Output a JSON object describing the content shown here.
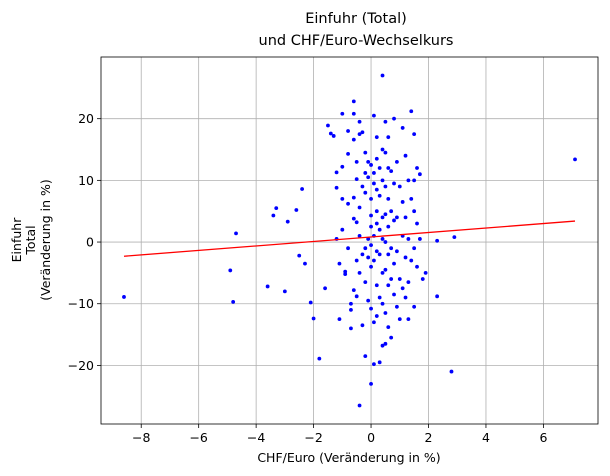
{
  "chart_data": {
    "type": "scatter",
    "title": [
      "Einfuhr (Total)",
      "und CHF/Euro-Wechselkurs"
    ],
    "xlabel": "CHF/Euro (Veränderung in %)",
    "ylabel": [
      "Einfuhr",
      "Total",
      "(Veränderung in %)"
    ],
    "xlim": [
      -9.4,
      7.9
    ],
    "ylim": [
      -29.5,
      30
    ],
    "xticks": [
      -8,
      -6,
      -4,
      -2,
      0,
      2,
      4,
      6
    ],
    "yticks": [
      -20,
      -10,
      0,
      10,
      20
    ],
    "grid": true,
    "point_color": "#0000ff",
    "trend_color": "#ff0000",
    "trendline": {
      "x": [
        -8.6,
        7.1
      ],
      "y": [
        -2.3,
        3.4
      ]
    },
    "points": [
      [
        -8.6,
        -8.9
      ],
      [
        -4.9,
        -4.6
      ],
      [
        -4.8,
        -9.7
      ],
      [
        -4.7,
        1.4
      ],
      [
        -3.6,
        -7.2
      ],
      [
        -3.4,
        4.3
      ],
      [
        -3.3,
        5.5
      ],
      [
        -3.0,
        -8.0
      ],
      [
        -2.9,
        3.3
      ],
      [
        -2.6,
        5.2
      ],
      [
        -2.5,
        -2.2
      ],
      [
        -2.4,
        8.6
      ],
      [
        -2.3,
        -3.5
      ],
      [
        -2.1,
        -9.8
      ],
      [
        -2.0,
        -12.4
      ],
      [
        -1.8,
        -18.9
      ],
      [
        -1.6,
        -7.5
      ],
      [
        -1.5,
        18.9
      ],
      [
        -1.4,
        17.6
      ],
      [
        -1.3,
        17.2
      ],
      [
        -1.2,
        11.3
      ],
      [
        -1.2,
        8.8
      ],
      [
        -1.2,
        0.5
      ],
      [
        -1.1,
        -3.5
      ],
      [
        -1.1,
        -12.5
      ],
      [
        -1.0,
        20.8
      ],
      [
        -1.0,
        12.2
      ],
      [
        -1.0,
        7.0
      ],
      [
        -1.0,
        2.0
      ],
      [
        -0.9,
        -4.8
      ],
      [
        -0.9,
        -5.2
      ],
      [
        -0.8,
        18.0
      ],
      [
        -0.8,
        14.3
      ],
      [
        -0.8,
        6.2
      ],
      [
        -0.8,
        -1.0
      ],
      [
        -0.7,
        -10.0
      ],
      [
        -0.7,
        -11.0
      ],
      [
        -0.7,
        -14.0
      ],
      [
        -0.6,
        22.8
      ],
      [
        -0.6,
        20.8
      ],
      [
        -0.6,
        16.6
      ],
      [
        -0.6,
        7.2
      ],
      [
        -0.6,
        3.8
      ],
      [
        -0.6,
        -7.8
      ],
      [
        -0.5,
        13.0
      ],
      [
        -0.5,
        10.2
      ],
      [
        -0.5,
        3.2
      ],
      [
        -0.5,
        -3.0
      ],
      [
        -0.5,
        -8.8
      ],
      [
        -0.4,
        19.5
      ],
      [
        -0.4,
        17.5
      ],
      [
        -0.4,
        5.6
      ],
      [
        -0.4,
        1.0
      ],
      [
        -0.4,
        -5.0
      ],
      [
        -0.4,
        -26.5
      ],
      [
        -0.3,
        17.8
      ],
      [
        -0.3,
        9.0
      ],
      [
        -0.3,
        -2.0
      ],
      [
        -0.3,
        -13.5
      ],
      [
        -0.2,
        14.5
      ],
      [
        -0.2,
        11.2
      ],
      [
        -0.2,
        8.0
      ],
      [
        -0.2,
        -1.0
      ],
      [
        -0.2,
        -6.5
      ],
      [
        -0.2,
        -18.5
      ],
      [
        -0.1,
        13.0
      ],
      [
        -0.1,
        10.5
      ],
      [
        -0.1,
        0.5
      ],
      [
        -0.1,
        -2.5
      ],
      [
        -0.1,
        -9.5
      ],
      [
        0.0,
        12.5
      ],
      [
        0.0,
        7.0
      ],
      [
        0.0,
        4.3
      ],
      [
        0.0,
        2.5
      ],
      [
        0.0,
        -0.5
      ],
      [
        0.0,
        -4.0
      ],
      [
        0.0,
        -10.8
      ],
      [
        0.0,
        -23.0
      ],
      [
        0.1,
        20.5
      ],
      [
        0.1,
        11.2
      ],
      [
        0.1,
        9.5
      ],
      [
        0.1,
        1.0
      ],
      [
        0.1,
        -3.0
      ],
      [
        0.1,
        -13.0
      ],
      [
        0.1,
        -19.8
      ],
      [
        0.2,
        17.0
      ],
      [
        0.2,
        13.5
      ],
      [
        0.2,
        8.5
      ],
      [
        0.2,
        5.0
      ],
      [
        0.2,
        3.0
      ],
      [
        0.2,
        -1.5
      ],
      [
        0.2,
        -7.0
      ],
      [
        0.2,
        -12.0
      ],
      [
        0.3,
        12.0
      ],
      [
        0.3,
        7.5
      ],
      [
        0.3,
        2.0
      ],
      [
        0.3,
        -2.0
      ],
      [
        0.3,
        -9.0
      ],
      [
        0.3,
        -19.5
      ],
      [
        0.4,
        27.0
      ],
      [
        0.4,
        15.0
      ],
      [
        0.4,
        10.0
      ],
      [
        0.4,
        4.0
      ],
      [
        0.4,
        0.5
      ],
      [
        0.4,
        -5.0
      ],
      [
        0.4,
        -10.0
      ],
      [
        0.4,
        -16.8
      ],
      [
        0.5,
        19.5
      ],
      [
        0.5,
        14.5
      ],
      [
        0.5,
        9.0
      ],
      [
        0.5,
        4.5
      ],
      [
        0.5,
        0.0
      ],
      [
        0.5,
        -4.5
      ],
      [
        0.5,
        -11.5
      ],
      [
        0.5,
        -16.5
      ],
      [
        0.6,
        17.0
      ],
      [
        0.6,
        12.0
      ],
      [
        0.6,
        7.0
      ],
      [
        0.6,
        2.5
      ],
      [
        0.6,
        -2.0
      ],
      [
        0.6,
        -7.0
      ],
      [
        0.6,
        -13.8
      ],
      [
        0.7,
        11.5
      ],
      [
        0.7,
        5.0
      ],
      [
        0.7,
        -1.0
      ],
      [
        0.7,
        -6.0
      ],
      [
        0.7,
        -15.5
      ],
      [
        0.8,
        20.0
      ],
      [
        0.8,
        9.5
      ],
      [
        0.8,
        3.5
      ],
      [
        0.8,
        -3.5
      ],
      [
        0.8,
        -8.5
      ],
      [
        0.9,
        13.0
      ],
      [
        0.9,
        4.0
      ],
      [
        0.9,
        -1.5
      ],
      [
        0.9,
        -10.5
      ],
      [
        1.0,
        9.0
      ],
      [
        1.0,
        -6.0
      ],
      [
        1.0,
        -12.5
      ],
      [
        1.1,
        18.5
      ],
      [
        1.1,
        6.5
      ],
      [
        1.1,
        1.0
      ],
      [
        1.1,
        -7.5
      ],
      [
        1.2,
        14.0
      ],
      [
        1.2,
        4.0
      ],
      [
        1.2,
        -2.5
      ],
      [
        1.2,
        -9.0
      ],
      [
        1.3,
        10.0
      ],
      [
        1.3,
        0.5
      ],
      [
        1.3,
        -6.5
      ],
      [
        1.3,
        -12.5
      ],
      [
        1.4,
        21.2
      ],
      [
        1.4,
        7.0
      ],
      [
        1.4,
        -3.0
      ],
      [
        1.5,
        17.5
      ],
      [
        1.5,
        10.0
      ],
      [
        1.5,
        5.0
      ],
      [
        1.5,
        -1.0
      ],
      [
        1.5,
        -10.5
      ],
      [
        1.6,
        12.0
      ],
      [
        1.6,
        3.0
      ],
      [
        1.6,
        -4.0
      ],
      [
        1.7,
        11.0
      ],
      [
        1.7,
        0.5
      ],
      [
        1.8,
        -6.0
      ],
      [
        1.9,
        -5.0
      ],
      [
        2.3,
        -8.8
      ],
      [
        2.3,
        0.2
      ],
      [
        2.8,
        -21.0
      ],
      [
        2.9,
        0.8
      ],
      [
        7.1,
        13.4
      ]
    ]
  }
}
